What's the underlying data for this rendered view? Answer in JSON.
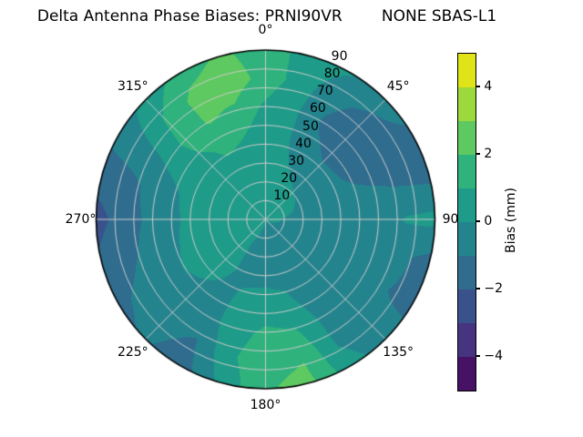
{
  "chart_data": {
    "type": "polar_contour",
    "title": "Delta Antenna Phase Biases: PRNI90VR        NONE SBAS-L1",
    "projection": {
      "zero_location": "top",
      "direction": "clockwise"
    },
    "angular_ticks": [
      "0°",
      "45°",
      "90",
      "135°",
      "180°",
      "225°",
      "270°",
      "315°"
    ],
    "angular_tick_values_deg": [
      0,
      45,
      90,
      135,
      180,
      225,
      270,
      315
    ],
    "radial_ticks": [
      "10",
      "20",
      "30",
      "40",
      "50",
      "60",
      "70",
      "80",
      "90"
    ],
    "radial_tick_values": [
      10,
      20,
      30,
      40,
      50,
      60,
      70,
      80,
      90
    ],
    "radial_range": [
      0,
      90
    ],
    "grid_color": "#cccccc",
    "outline_color": "#000000",
    "colorbar": {
      "label": "Bias (mm)",
      "range": [
        -5,
        5
      ],
      "ticks": [
        {
          "label": "4",
          "value": 4
        },
        {
          "label": "2",
          "value": 2
        },
        {
          "label": "0",
          "value": 0
        },
        {
          "label": "−2",
          "value": -2
        },
        {
          "label": "−4",
          "value": -4
        }
      ],
      "band_levels": [
        -5,
        -4,
        -3,
        -2,
        -1,
        0,
        1,
        2,
        3,
        4,
        5
      ],
      "band_colors": [
        "#471265",
        "#463480",
        "#3a528b",
        "#2f6c8e",
        "#24848e",
        "#1f9b89",
        "#2fb27c",
        "#5ec961",
        "#9bd93c",
        "#dfe318"
      ]
    },
    "grid": {
      "azimuth_deg": [
        0,
        15,
        30,
        45,
        60,
        75,
        90,
        105,
        120,
        135,
        150,
        165,
        180,
        195,
        210,
        225,
        240,
        255,
        270,
        285,
        300,
        315,
        330,
        345
      ],
      "zenith_deg": [
        0,
        15,
        30,
        45,
        60,
        75,
        90
      ],
      "bias_mm": [
        [
          0.4,
          0.5,
          0.5,
          0.4,
          0.8,
          1.6,
          1.4
        ],
        [
          0.4,
          0.4,
          0.2,
          0.1,
          0.2,
          0.5,
          0.7
        ],
        [
          0.4,
          0.3,
          -0.1,
          -0.7,
          -1.1,
          -0.7,
          0.1
        ],
        [
          0.4,
          0.2,
          -0.3,
          -1.1,
          -1.7,
          -1.3,
          -0.4
        ],
        [
          0.4,
          0.1,
          -0.4,
          -1.0,
          -1.5,
          -1.4,
          -1.2
        ],
        [
          0.3,
          0.0,
          -0.5,
          -0.8,
          -0.9,
          -1.1,
          -1.3
        ],
        [
          0.3,
          -0.2,
          -0.6,
          -0.7,
          -0.5,
          0.1,
          0.3
        ],
        [
          0.2,
          -0.3,
          -0.7,
          -0.8,
          -0.6,
          -0.8,
          -1.4
        ],
        [
          0.1,
          -0.4,
          -0.8,
          -0.9,
          -0.8,
          -1.0,
          -1.3
        ],
        [
          0.1,
          -0.5,
          -0.8,
          -0.9,
          -0.8,
          -0.7,
          -0.5
        ],
        [
          0.0,
          -0.5,
          -0.6,
          -0.5,
          -0.2,
          -0.1,
          0.4
        ],
        [
          0.0,
          -0.4,
          -0.3,
          0.2,
          1.0,
          1.9,
          2.3
        ],
        [
          0.0,
          -0.3,
          -0.2,
          0.3,
          1.2,
          1.7,
          1.9
        ],
        [
          0.1,
          -0.2,
          -0.1,
          0.1,
          0.6,
          0.8,
          0.3
        ],
        [
          0.2,
          0.0,
          0.0,
          -0.1,
          -0.4,
          -1.1,
          -1.5
        ],
        [
          0.3,
          0.2,
          0.2,
          0.0,
          -0.4,
          -0.7,
          -0.9
        ],
        [
          0.3,
          0.3,
          0.3,
          0.2,
          -0.3,
          -0.8,
          -1.2
        ],
        [
          0.4,
          0.4,
          0.4,
          0.1,
          -0.6,
          -1.2,
          -1.8
        ],
        [
          0.4,
          0.4,
          0.3,
          0.0,
          -0.7,
          -1.5,
          -2.4
        ],
        [
          0.5,
          0.5,
          0.3,
          0.1,
          -0.6,
          -1.3,
          -1.6
        ],
        [
          0.5,
          0.5,
          0.4,
          0.4,
          0.1,
          -0.4,
          -0.7
        ],
        [
          0.5,
          0.5,
          0.6,
          0.8,
          1.3,
          1.1,
          0.3
        ],
        [
          0.5,
          0.6,
          0.7,
          1.2,
          2.1,
          2.3,
          1.5
        ],
        [
          0.5,
          0.6,
          0.7,
          1.0,
          1.8,
          2.6,
          2.2
        ]
      ]
    }
  }
}
